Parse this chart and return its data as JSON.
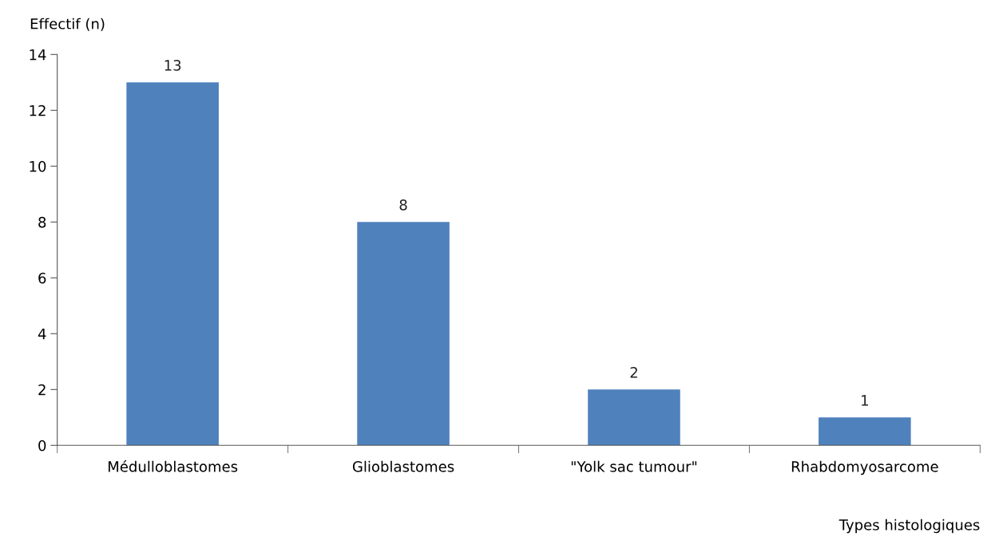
{
  "chart_data": {
    "type": "bar",
    "ylabel": "Effectif (n)",
    "xlabel": "Types histologiques",
    "categories": [
      "Médulloblastomes",
      "Glioblastomes",
      "\"Yolk sac tumour\"",
      "Rhabdomyosarcome"
    ],
    "values": [
      13,
      8,
      2,
      1
    ],
    "color": "#4f81bd",
    "ylim": [
      0,
      14
    ],
    "yticks": [
      0,
      2,
      4,
      6,
      8,
      10,
      12,
      14
    ],
    "data_labels": true,
    "grid": false,
    "legend": false
  }
}
